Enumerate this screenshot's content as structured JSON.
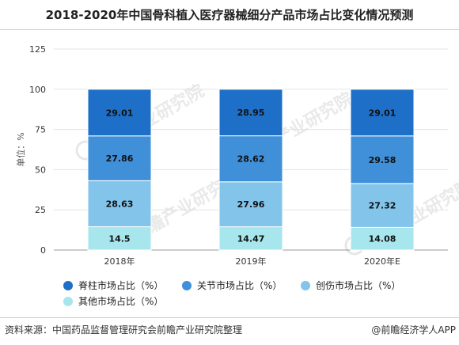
{
  "title": "2018-2020年中国骨科植入医疗器械细分产品市场占比变化情况预测",
  "source": "资料来源：中国药品监督管理研究会前瞻产业研究院整理",
  "credit": "@前瞻经济学人APP",
  "watermark": "前瞻产业研究院",
  "chart_data": {
    "type": "bar",
    "stacked": true,
    "categories": [
      "2018年",
      "2019年",
      "2020年E"
    ],
    "ylabel": "单位：%",
    "ylim": [
      0,
      125
    ],
    "yticks": [
      "0",
      "25",
      "50",
      "75",
      "100",
      "125"
    ],
    "grid": true,
    "legend_position": "bottom",
    "series": [
      {
        "name": "其他市场占比（%）",
        "color": "#a8e6ee",
        "values": [
          14.5,
          14.47,
          14.08
        ],
        "labels": [
          "14.5",
          "14.47",
          "14.08"
        ]
      },
      {
        "name": "创伤市场占比（%）",
        "color": "#82c4ea",
        "values": [
          28.63,
          27.96,
          27.32
        ],
        "labels": [
          "28.63",
          "27.96",
          "27.32"
        ]
      },
      {
        "name": "关节市场占比（%）",
        "color": "#3f8fd9",
        "values": [
          27.86,
          28.62,
          29.58
        ],
        "labels": [
          "27.86",
          "28.62",
          "29.58"
        ]
      },
      {
        "name": "脊柱市场占比（%）",
        "color": "#1e6fc7",
        "values": [
          29.01,
          28.95,
          29.01
        ],
        "labels": [
          "29.01",
          "28.95",
          "29.01"
        ]
      }
    ]
  }
}
